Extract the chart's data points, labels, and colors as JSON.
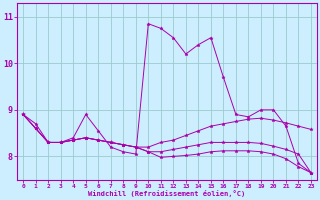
{
  "xlabel": "Windchill (Refroidissement éolien,°C)",
  "background_color": "#cceeff",
  "line_color": "#aa00aa",
  "grid_color": "#99cccc",
  "xlim": [
    -0.5,
    23.5
  ],
  "ylim": [
    7.5,
    11.3
  ],
  "yticks": [
    8,
    9,
    10,
    11
  ],
  "xticks": [
    0,
    1,
    2,
    3,
    4,
    5,
    6,
    7,
    8,
    9,
    10,
    11,
    12,
    13,
    14,
    15,
    16,
    17,
    18,
    19,
    20,
    21,
    22,
    23
  ],
  "series": [
    [
      8.9,
      8.7,
      8.3,
      8.3,
      8.4,
      8.9,
      8.55,
      8.2,
      8.1,
      8.05,
      10.85,
      10.75,
      10.55,
      10.2,
      10.4,
      10.55,
      9.7,
      8.9,
      8.85,
      9.0,
      9.0,
      8.65,
      7.85,
      7.65
    ],
    [
      8.9,
      8.6,
      8.3,
      8.3,
      8.35,
      8.4,
      8.35,
      8.3,
      8.25,
      8.2,
      8.2,
      8.3,
      8.35,
      8.45,
      8.55,
      8.65,
      8.7,
      8.75,
      8.8,
      8.82,
      8.78,
      8.72,
      8.65,
      8.58
    ],
    [
      8.9,
      8.6,
      8.3,
      8.3,
      8.35,
      8.4,
      8.35,
      8.3,
      8.25,
      8.2,
      8.1,
      8.1,
      8.15,
      8.2,
      8.25,
      8.3,
      8.3,
      8.3,
      8.3,
      8.28,
      8.22,
      8.15,
      8.05,
      7.65
    ],
    [
      8.9,
      8.6,
      8.3,
      8.3,
      8.35,
      8.4,
      8.35,
      8.3,
      8.25,
      8.2,
      8.1,
      7.98,
      8.0,
      8.02,
      8.05,
      8.1,
      8.12,
      8.12,
      8.12,
      8.1,
      8.05,
      7.95,
      7.78,
      7.65
    ]
  ]
}
